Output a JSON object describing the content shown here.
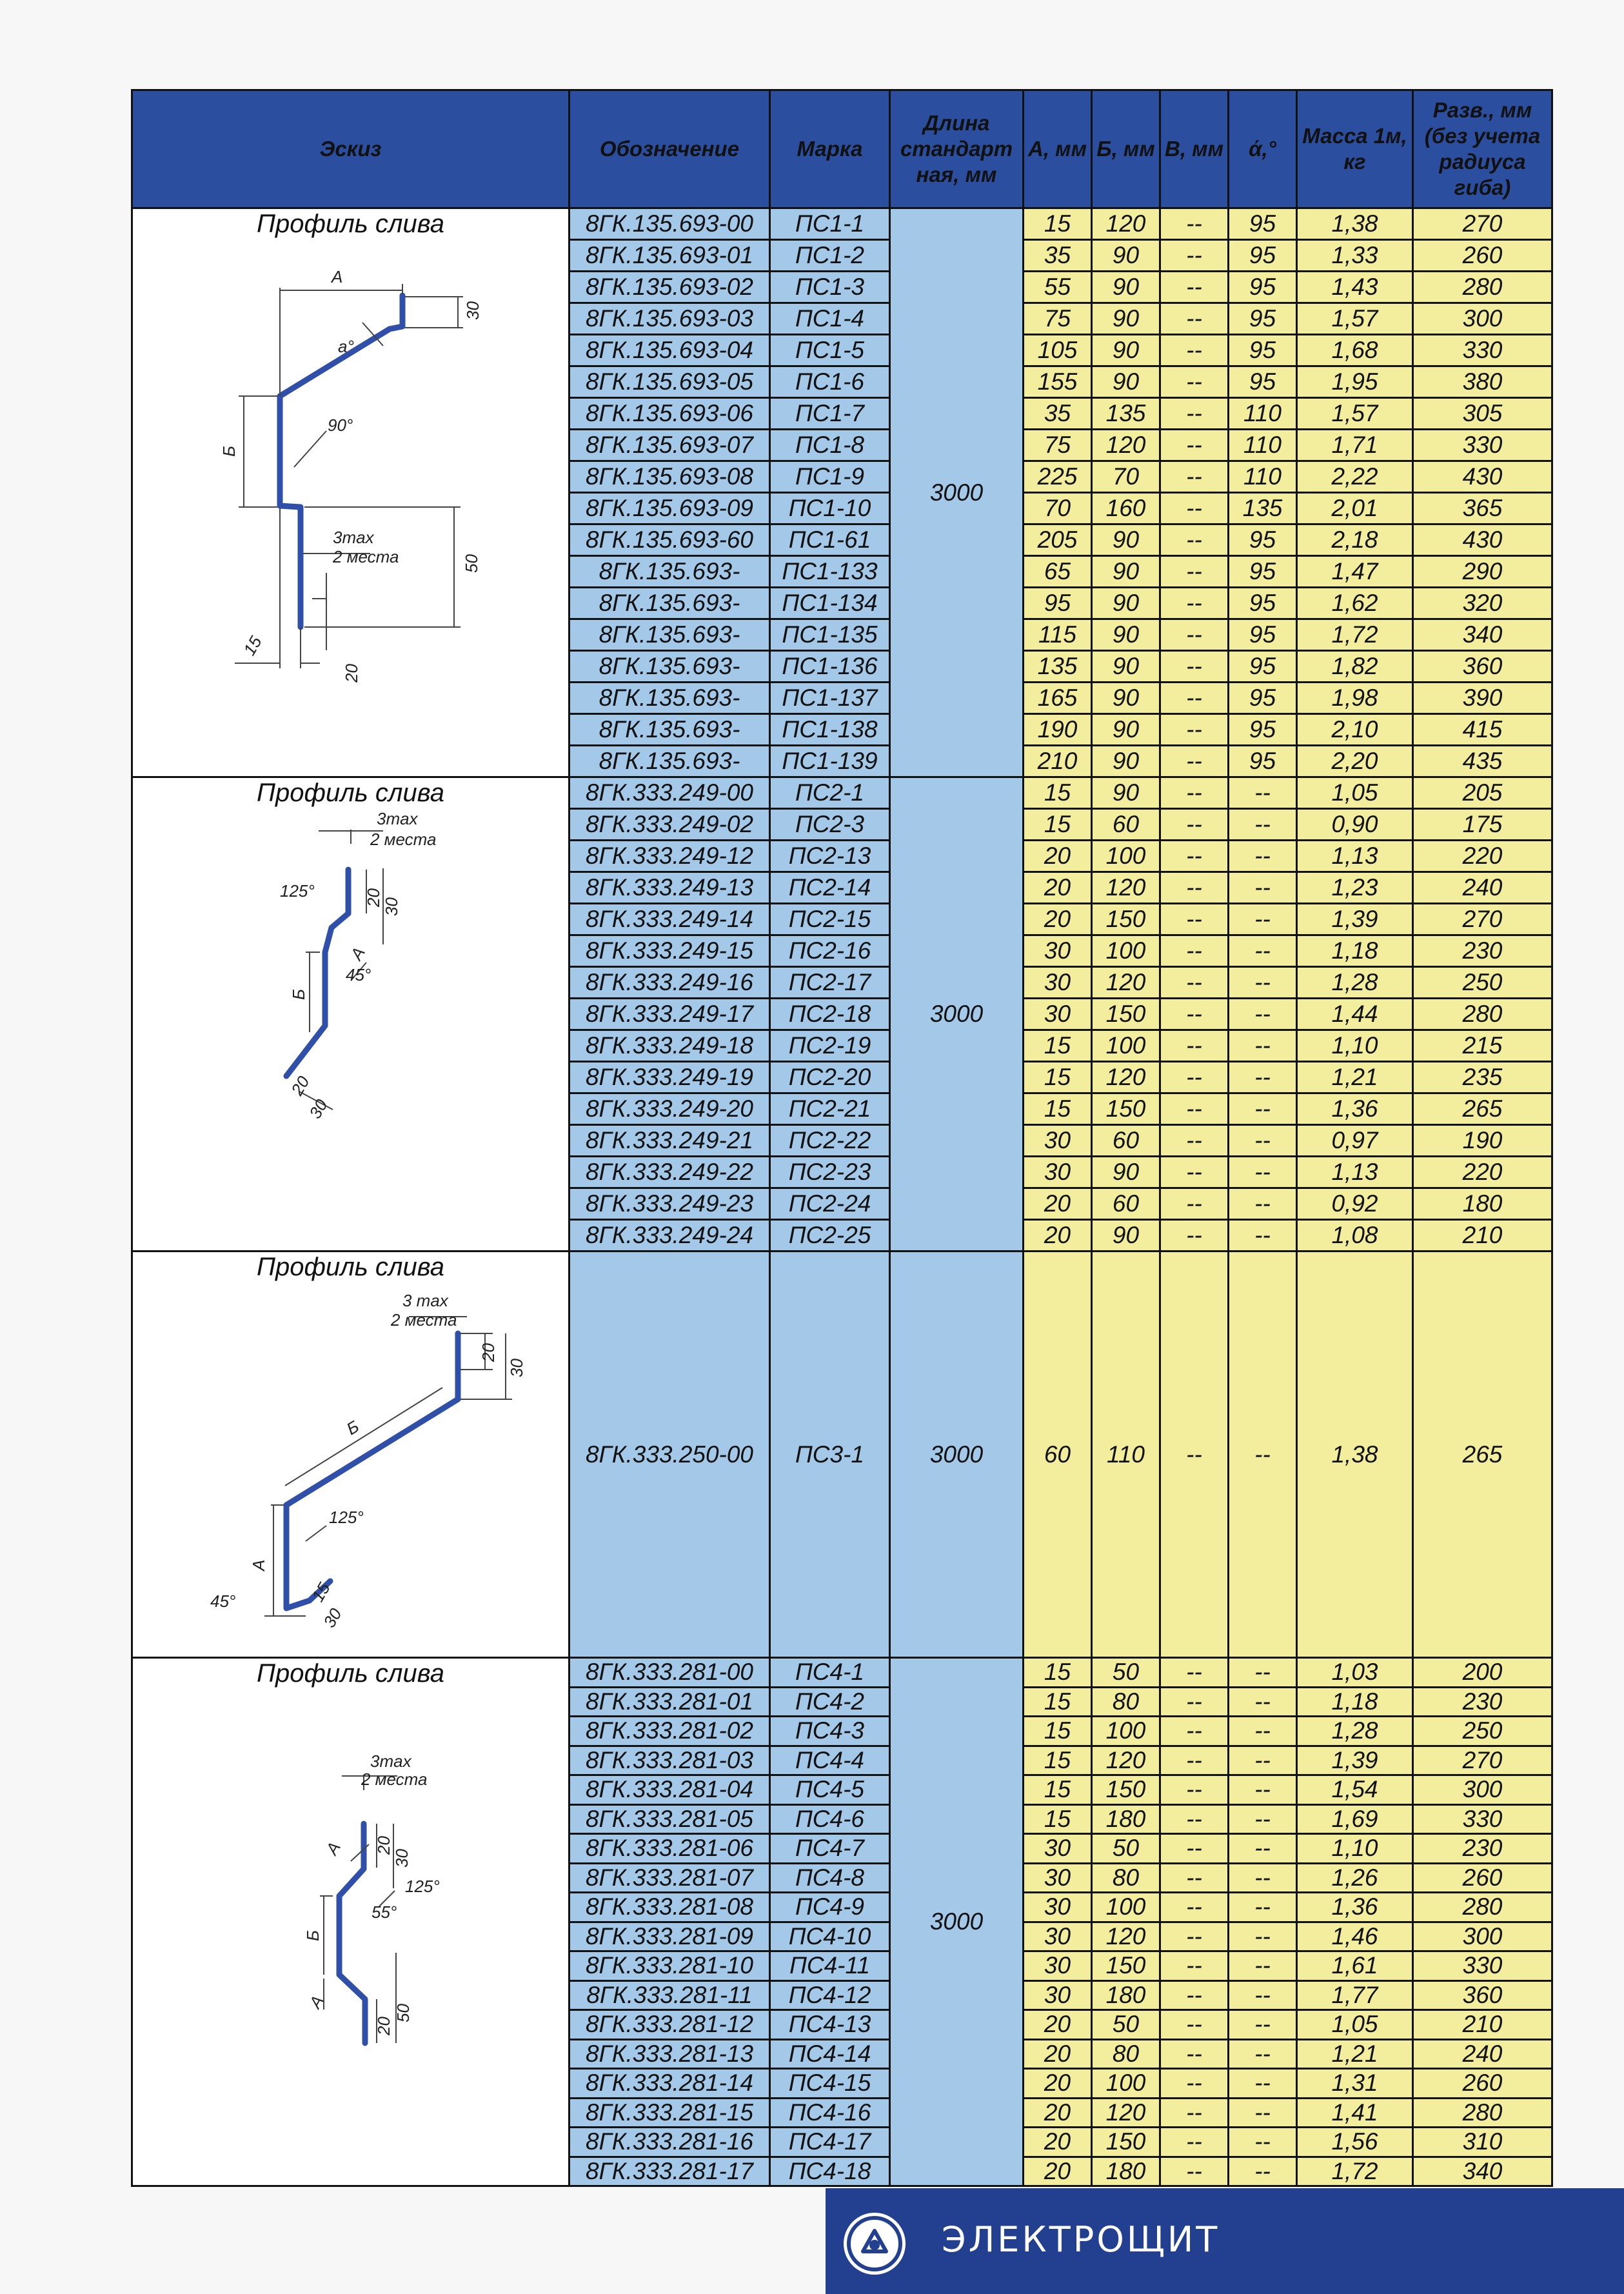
{
  "headers": {
    "sketch": "Эскиз",
    "designation": "Обозначение",
    "mark": "Марка",
    "length": "Длина стандарт ная, мм",
    "a": "А, мм",
    "b": "Б, мм",
    "v": "В, мм",
    "angle": "ά,°",
    "mass": "Масса 1м, кг",
    "dev": "Разв., мм (без учета радиуса гиба)"
  },
  "groups": [
    {
      "title": "Профиль слива",
      "length": "3000",
      "sketch_labels": [
        "А",
        "а°",
        "30",
        "Б",
        "90°",
        "3max",
        "2 места",
        "50",
        "15",
        "20"
      ],
      "rows": [
        [
          "8ГК.135.693-00",
          "ПС1-1",
          "15",
          "120",
          "--",
          "95",
          "1,38",
          "270"
        ],
        [
          "8ГК.135.693-01",
          "ПС1-2",
          "35",
          "90",
          "--",
          "95",
          "1,33",
          "260"
        ],
        [
          "8ГК.135.693-02",
          "ПС1-3",
          "55",
          "90",
          "--",
          "95",
          "1,43",
          "280"
        ],
        [
          "8ГК.135.693-03",
          "ПС1-4",
          "75",
          "90",
          "--",
          "95",
          "1,57",
          "300"
        ],
        [
          "8ГК.135.693-04",
          "ПС1-5",
          "105",
          "90",
          "--",
          "95",
          "1,68",
          "330"
        ],
        [
          "8ГК.135.693-05",
          "ПС1-6",
          "155",
          "90",
          "--",
          "95",
          "1,95",
          "380"
        ],
        [
          "8ГК.135.693-06",
          "ПС1-7",
          "35",
          "135",
          "--",
          "110",
          "1,57",
          "305"
        ],
        [
          "8ГК.135.693-07",
          "ПС1-8",
          "75",
          "120",
          "--",
          "110",
          "1,71",
          "330"
        ],
        [
          "8ГК.135.693-08",
          "ПС1-9",
          "225",
          "70",
          "--",
          "110",
          "2,22",
          "430"
        ],
        [
          "8ГК.135.693-09",
          "ПС1-10",
          "70",
          "160",
          "--",
          "135",
          "2,01",
          "365"
        ],
        [
          "8ГК.135.693-60",
          "ПС1-61",
          "205",
          "90",
          "--",
          "95",
          "2,18",
          "430"
        ],
        [
          "8ГК.135.693-",
          "ПС1-133",
          "65",
          "90",
          "--",
          "95",
          "1,47",
          "290"
        ],
        [
          "8ГК.135.693-",
          "ПС1-134",
          "95",
          "90",
          "--",
          "95",
          "1,62",
          "320"
        ],
        [
          "8ГК.135.693-",
          "ПС1-135",
          "115",
          "90",
          "--",
          "95",
          "1,72",
          "340"
        ],
        [
          "8ГК.135.693-",
          "ПС1-136",
          "135",
          "90",
          "--",
          "95",
          "1,82",
          "360"
        ],
        [
          "8ГК.135.693-",
          "ПС1-137",
          "165",
          "90",
          "--",
          "95",
          "1,98",
          "390"
        ],
        [
          "8ГК.135.693-",
          "ПС1-138",
          "190",
          "90",
          "--",
          "95",
          "2,10",
          "415"
        ],
        [
          "8ГК.135.693-",
          "ПС1-139",
          "210",
          "90",
          "--",
          "95",
          "2,20",
          "435"
        ]
      ]
    },
    {
      "title": "Профиль слива",
      "length": "3000",
      "sketch_labels": [
        "3max",
        "2 места",
        "125°",
        "20",
        "30",
        "А",
        "45°",
        "Б",
        "20",
        "30"
      ],
      "rows": [
        [
          "8ГК.333.249-00",
          "ПС2-1",
          "15",
          "90",
          "--",
          "--",
          "1,05",
          "205"
        ],
        [
          "8ГК.333.249-02",
          "ПС2-3",
          "15",
          "60",
          "--",
          "--",
          "0,90",
          "175"
        ],
        [
          "8ГК.333.249-12",
          "ПС2-13",
          "20",
          "100",
          "--",
          "--",
          "1,13",
          "220"
        ],
        [
          "8ГК.333.249-13",
          "ПС2-14",
          "20",
          "120",
          "--",
          "--",
          "1,23",
          "240"
        ],
        [
          "8ГК.333.249-14",
          "ПС2-15",
          "20",
          "150",
          "--",
          "--",
          "1,39",
          "270"
        ],
        [
          "8ГК.333.249-15",
          "ПС2-16",
          "30",
          "100",
          "--",
          "--",
          "1,18",
          "230"
        ],
        [
          "8ГК.333.249-16",
          "ПС2-17",
          "30",
          "120",
          "--",
          "--",
          "1,28",
          "250"
        ],
        [
          "8ГК.333.249-17",
          "ПС2-18",
          "30",
          "150",
          "--",
          "--",
          "1,44",
          "280"
        ],
        [
          "8ГК.333.249-18",
          "ПС2-19",
          "15",
          "100",
          "--",
          "--",
          "1,10",
          "215"
        ],
        [
          "8ГК.333.249-19",
          "ПС2-20",
          "15",
          "120",
          "--",
          "--",
          "1,21",
          "235"
        ],
        [
          "8ГК.333.249-20",
          "ПС2-21",
          "15",
          "150",
          "--",
          "--",
          "1,36",
          "265"
        ],
        [
          "8ГК.333.249-21",
          "ПС2-22",
          "30",
          "60",
          "--",
          "--",
          "0,97",
          "190"
        ],
        [
          "8ГК.333.249-22",
          "ПС2-23",
          "30",
          "90",
          "--",
          "--",
          "1,13",
          "220"
        ],
        [
          "8ГК.333.249-23",
          "ПС2-24",
          "20",
          "60",
          "--",
          "--",
          "0,92",
          "180"
        ],
        [
          "8ГК.333.249-24",
          "ПС2-25",
          "20",
          "90",
          "--",
          "--",
          "1,08",
          "210"
        ]
      ]
    },
    {
      "title": "Профиль слива",
      "length": "3000",
      "sketch_labels": [
        "3 max",
        "2 места",
        "20",
        "30",
        "Б",
        "125°",
        "А",
        "45°",
        "15",
        "30"
      ],
      "rows": [
        [
          "8ГК.333.250-00",
          "ПС3-1",
          "60",
          "110",
          "--",
          "--",
          "1,38",
          "265"
        ]
      ]
    },
    {
      "title": "Профиль слива",
      "length": "3000",
      "sketch_labels": [
        "3max",
        "2 места",
        "20",
        "30",
        "А",
        "125°",
        "55°",
        "Б",
        "А",
        "50",
        "20"
      ],
      "rows": [
        [
          "8ГК.333.281-00",
          "ПС4-1",
          "15",
          "50",
          "--",
          "--",
          "1,03",
          "200"
        ],
        [
          "8ГК.333.281-01",
          "ПС4-2",
          "15",
          "80",
          "--",
          "--",
          "1,18",
          "230"
        ],
        [
          "8ГК.333.281-02",
          "ПС4-3",
          "15",
          "100",
          "--",
          "--",
          "1,28",
          "250"
        ],
        [
          "8ГК.333.281-03",
          "ПС4-4",
          "15",
          "120",
          "--",
          "--",
          "1,39",
          "270"
        ],
        [
          "8ГК.333.281-04",
          "ПС4-5",
          "15",
          "150",
          "--",
          "--",
          "1,54",
          "300"
        ],
        [
          "8ГК.333.281-05",
          "ПС4-6",
          "15",
          "180",
          "--",
          "--",
          "1,69",
          "330"
        ],
        [
          "8ГК.333.281-06",
          "ПС4-7",
          "30",
          "50",
          "--",
          "--",
          "1,10",
          "230"
        ],
        [
          "8ГК.333.281-07",
          "ПС4-8",
          "30",
          "80",
          "--",
          "--",
          "1,26",
          "260"
        ],
        [
          "8ГК.333.281-08",
          "ПС4-9",
          "30",
          "100",
          "--",
          "--",
          "1,36",
          "280"
        ],
        [
          "8ГК.333.281-09",
          "ПС4-10",
          "30",
          "120",
          "--",
          "--",
          "1,46",
          "300"
        ],
        [
          "8ГК.333.281-10",
          "ПС4-11",
          "30",
          "150",
          "--",
          "--",
          "1,61",
          "330"
        ],
        [
          "8ГК.333.281-11",
          "ПС4-12",
          "30",
          "180",
          "--",
          "--",
          "1,77",
          "360"
        ],
        [
          "8ГК.333.281-12",
          "ПС4-13",
          "20",
          "50",
          "--",
          "--",
          "1,05",
          "210"
        ],
        [
          "8ГК.333.281-13",
          "ПС4-14",
          "20",
          "80",
          "--",
          "--",
          "1,21",
          "240"
        ],
        [
          "8ГК.333.281-14",
          "ПС4-15",
          "20",
          "100",
          "--",
          "--",
          "1,31",
          "260"
        ],
        [
          "8ГК.333.281-15",
          "ПС4-16",
          "20",
          "120",
          "--",
          "--",
          "1,41",
          "280"
        ],
        [
          "8ГК.333.281-16",
          "ПС4-17",
          "20",
          "150",
          "--",
          "--",
          "1,56",
          "310"
        ],
        [
          "8ГК.333.281-17",
          "ПС4-18",
          "20",
          "180",
          "--",
          "--",
          "1,72",
          "340"
        ]
      ]
    }
  ],
  "footer": {
    "brand": "ЭЛЕКТРОЩИТ",
    "logo_icon": "electroshield-logo-icon",
    "accent_color": "#22408f"
  }
}
